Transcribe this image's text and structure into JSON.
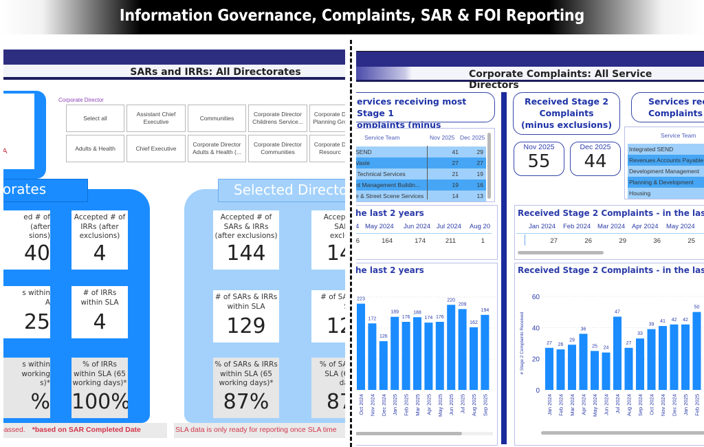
{
  "banner": {
    "title": "Information Governance, Complaints, SAR & FOI Reporting"
  },
  "left": {
    "header_title": "SARs and IRRs: All Directorates",
    "card_text": "_A",
    "slicer": {
      "label": "Corporate Director",
      "options": [
        "Select all",
        "Assistant Chief Executive",
        "Communities",
        "Corporate Director Childrens Service...",
        "Corporate D Planning Gro",
        "Adults & Health",
        "Chief Executive",
        "Corporate Director Adults & Health (...",
        "Corporate Director Communities",
        "Corporate D Resourc"
      ]
    },
    "all_directorates": {
      "tab_title": "torates",
      "kpis": [
        {
          "label": "ed # of\n(after\nsions)",
          "value": "40"
        },
        {
          "label": "Accepted # of IRRs (after exclusions)",
          "value": "4"
        },
        {
          "label": "s within\nA",
          "value": "25"
        },
        {
          "label": "# of IRRs within SLA",
          "value": "4"
        },
        {
          "label": "s within\nworking\ns)*",
          "value": "%"
        },
        {
          "label": "% of IRRs within SLA (65 working days)*",
          "value": "100%"
        }
      ]
    },
    "selected_directorates": {
      "tab_title": "Selected Director",
      "kpis": [
        {
          "label": "Accepted # of SARs & IRRs (after exclusions)",
          "value": "144"
        },
        {
          "label": "Accepte\nSARs\nexclus",
          "value": "14"
        },
        {
          "label": "# of SARs & IRRs within SLA",
          "value": "129"
        },
        {
          "label": "# of SAR\nSL",
          "value": "12"
        },
        {
          "label": "% of SARs & IRRs within SLA (65 working days)*",
          "value": "87%"
        },
        {
          "label": "% of SAR\nSLA (65\nday",
          "value": "87"
        }
      ]
    },
    "footnote_left_a": "passed.",
    "footnote_left_b": "*based on SAR Completed Date",
    "footnote_right": "SLA data is only ready for reporting once SLA time"
  },
  "right": {
    "header_title": "Corporate Complaints: All Service Directors",
    "stage1_title": "ervices receiving most Stage 1\nomplaints (minus exclusions)",
    "stage1_table": {
      "columns": [
        "Service Team",
        "Nov 2025",
        "Dec 2025"
      ],
      "rows": [
        {
          "name": "SEND",
          "nov": "41",
          "dec": "29"
        },
        {
          "name": "Vaste",
          "nov": "27",
          "dec": "27"
        },
        {
          "name": " Technical Services",
          "nov": "21",
          "dec": "19"
        },
        {
          "name": "nt Management Buildin...",
          "nov": "19",
          "dec": "16"
        },
        {
          "name": "e & Street Scene Services",
          "nov": "14",
          "dec": "13"
        }
      ]
    },
    "stage2_title": "Received Stage 2\nComplaints\n(minus exclusions)",
    "stage2_cards": [
      {
        "label": "Nov 2025",
        "value": "55"
      },
      {
        "label": "Dec 2025",
        "value": "44"
      }
    ],
    "services_stage2_title": "Services rece\nComplaints",
    "services_stage2_table": {
      "column": "Service Team",
      "rows": [
        "Integrated SEND",
        "Revenues Accounts Payable",
        "Development Management",
        "Planning & Development",
        "Housing"
      ]
    },
    "stage1_matrix": {
      "title": "he last 2 years",
      "months": [
        "4",
        "May 2024",
        "Jun 2024",
        "Jul 2024",
        "Aug 20"
      ],
      "values": [
        "6",
        "164",
        "174",
        "211",
        "1"
      ]
    },
    "stage2_matrix": {
      "title": "Received Stage 2 Complaints - in the last 2 y",
      "months": [
        "Jan 2024",
        "Feb 2024",
        "Mar 2024",
        "Apr 2024",
        "May 2024"
      ],
      "values": [
        "27",
        "26",
        "29",
        "36",
        "25"
      ]
    }
  },
  "chart_data": [
    {
      "type": "bar",
      "title": "he last 2 years",
      "categories": [
        "Oct 2024",
        "Nov 2024",
        "Dec 2024",
        "Jan 2025",
        "Feb 2025",
        "Mar 2025",
        "Apr 2025",
        "May 2025",
        "Jun 2025",
        "Jul 2025",
        "Aug 2025",
        "Sep 2025"
      ],
      "values": [
        223,
        172,
        126,
        189,
        176,
        188,
        174,
        176,
        220,
        209,
        162,
        194
      ],
      "xlabel": "",
      "ylabel": "",
      "ylim": [
        0,
        240
      ],
      "bar_color": "#1a8cff",
      "grid": true
    },
    {
      "type": "bar",
      "title": "Received Stage 2 Complaints - in the last 2 y",
      "categories": [
        "Jan 2024",
        "Feb 2024",
        "Mar 2024",
        "Apr 2024",
        "May 2024",
        "Jun 2024",
        "Jul 2024",
        "Aug 2024",
        "Sep 2024",
        "Oct 2024",
        "Nov 2024",
        "Dec 2024",
        "Jan 2025",
        "Feb 2025"
      ],
      "values": [
        27,
        26,
        29,
        36,
        25,
        24,
        47,
        27,
        33,
        39,
        41,
        42,
        42,
        50
      ],
      "xlabel": "",
      "ylabel": "# Stage 2 Complaints Received",
      "yticks": [
        0,
        20,
        40,
        60
      ],
      "ylim": [
        0,
        60
      ],
      "bar_color": "#1a8cff",
      "grid": true
    }
  ]
}
